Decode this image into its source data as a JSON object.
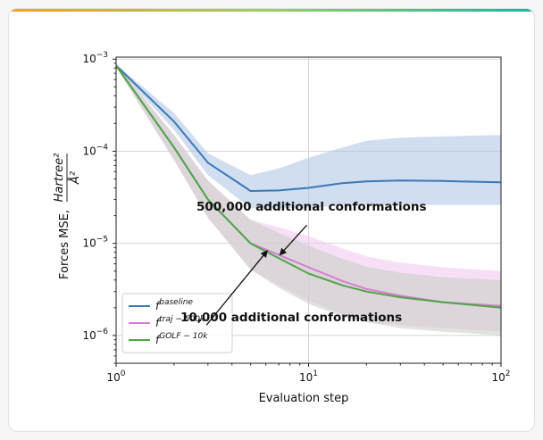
{
  "chart_data": {
    "type": "line",
    "title": "",
    "xlabel": "Evaluation step",
    "ylabel_prefix": "Forces MSE,",
    "ylabel_fraction_num": "Hartree²",
    "ylabel_fraction_den": "Å²",
    "xscale": "log",
    "yscale": "log",
    "xlim": [
      1,
      100
    ],
    "ylim": [
      5e-07,
      0.00105
    ],
    "grid": true,
    "legend_position": "lower-left",
    "x_ticks": [
      {
        "value": 1,
        "base": "10",
        "exp": "0"
      },
      {
        "value": 10,
        "base": "10",
        "exp": "1"
      },
      {
        "value": 100,
        "base": "10",
        "exp": "2"
      }
    ],
    "y_ticks": [
      {
        "value": 0.001,
        "base": "10",
        "exp": "−3"
      },
      {
        "value": 0.0001,
        "base": "10",
        "exp": "−4"
      },
      {
        "value": 1e-05,
        "base": "10",
        "exp": "−5"
      },
      {
        "value": 1e-06,
        "base": "10",
        "exp": "−6"
      }
    ],
    "series": [
      {
        "name": "f^baseline",
        "label_base": "f",
        "label_sup": "baseline",
        "color": "#3a78b5",
        "band_color": "#a9c3e4",
        "x": [
          1,
          2,
          3,
          5,
          7,
          10,
          15,
          20,
          30,
          50,
          100
        ],
        "y": [
          0.00085,
          0.00021,
          7.5e-05,
          3.7e-05,
          3.75e-05,
          4e-05,
          4.5e-05,
          4.7e-05,
          4.8e-05,
          4.75e-05,
          4.6e-05
        ],
        "lower": [
          0.00082,
          0.00017,
          5.5e-05,
          2.4e-05,
          2.4e-05,
          2.45e-05,
          2.55e-05,
          2.6e-05,
          2.62e-05,
          2.62e-05,
          2.62e-05
        ],
        "upper": [
          0.00088,
          0.00026,
          9.5e-05,
          5.5e-05,
          6.5e-05,
          8.5e-05,
          0.00011,
          0.00013,
          0.00014,
          0.000145,
          0.00015
        ]
      },
      {
        "name": "f^traj-500k",
        "label_base": "f",
        "label_sup": "traj − 500k",
        "color": "#d77bd1",
        "band_color": "#f0c6ee",
        "x": [
          1,
          2,
          3,
          5,
          7,
          10,
          15,
          20,
          30,
          50,
          100
        ],
        "y": [
          0.00085,
          0.00011,
          3e-05,
          1e-05,
          7.5e-06,
          5.5e-06,
          3.9e-06,
          3.2e-06,
          2.7e-06,
          2.3e-06,
          2.1e-06
        ],
        "lower": [
          0.00082,
          8e-05,
          1.9e-05,
          5.2e-06,
          3.5e-06,
          2.4e-06,
          1.7e-06,
          1.4e-06,
          1.3e-06,
          1.2e-06,
          1.1e-06
        ],
        "upper": [
          0.00088,
          0.00015,
          4.8e-05,
          1.8e-05,
          1.5e-05,
          1.2e-05,
          8.8e-06,
          7.2e-06,
          6.2e-06,
          5.5e-06,
          5e-06
        ]
      },
      {
        "name": "f^GOLF-10k",
        "label_base": "f",
        "label_sup": "GOLF − 10k",
        "color": "#4ea646",
        "band_color": "#c7cdc2",
        "x": [
          1,
          2,
          3,
          5,
          7,
          10,
          15,
          20,
          30,
          50,
          100
        ],
        "y": [
          0.00085,
          0.00011,
          3e-05,
          1e-05,
          6.9e-06,
          4.7e-06,
          3.5e-06,
          3e-06,
          2.6e-06,
          2.3e-06,
          2e-06
        ],
        "lower": [
          0.00082,
          8e-05,
          1.9e-05,
          5.2e-06,
          3.3e-06,
          2.2e-06,
          1.6e-06,
          1.4e-06,
          1.2e-06,
          1.1e-06,
          1e-06
        ],
        "upper": [
          0.00088,
          0.00015,
          4.8e-05,
          1.8e-05,
          1.3e-05,
          9.5e-06,
          6.8e-06,
          5.6e-06,
          4.8e-06,
          4.3e-06,
          4e-06
        ]
      }
    ],
    "annotations": [
      {
        "text": "500,000 additional conformations",
        "arrow_to_series": "f^traj-500k",
        "arrow_to_x": 7.1,
        "arrow_to_y": 7.5e-06,
        "from_x": 9.8,
        "from_y": 1.58e-05
      },
      {
        "text": "10,000 additional conformations",
        "arrow_to_series": "f^GOLF-10k",
        "arrow_to_x": 6.1,
        "arrow_to_y": 8.3e-06,
        "from_x": 2.95,
        "from_y": 1.3e-06
      }
    ]
  }
}
